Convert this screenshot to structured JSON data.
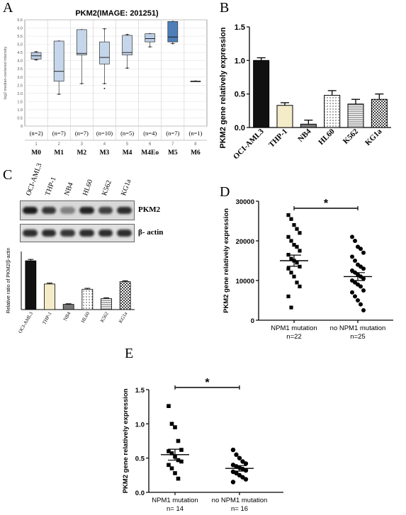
{
  "letters": {
    "a": "A",
    "b": "B",
    "c": "C",
    "d": "D",
    "e": "E"
  },
  "chart_data": [
    {
      "panel": "A",
      "type": "box",
      "title": "PKM2(IMAGE: 201251)",
      "ylabel": "log2 median-centered intensity",
      "ylim": [
        0,
        6.5
      ],
      "yticks": [
        "0",
        "0.5",
        "1.0",
        "1.5",
        "2.0",
        "2.5",
        "3.0",
        "3.5",
        "4.0",
        "4.5",
        "5.0",
        "5.5",
        "6.0",
        "6.5"
      ],
      "index_labels": [
        "1",
        "2",
        "3",
        "4",
        "5",
        "6",
        "7",
        "8"
      ],
      "categories": [
        "M0",
        "M1",
        "M2",
        "M3",
        "M4",
        "M4Eo",
        "M5",
        "M6"
      ],
      "n_labels": [
        "(n=2)",
        "(n=7)",
        "(n=7)",
        "(n=10)",
        "(n=5)",
        "(n=4)",
        "(n=7)",
        "(n=1)"
      ],
      "boxes": [
        {
          "min": 4.05,
          "q1": 4.1,
          "med": 4.3,
          "q3": 4.5,
          "max": 4.55,
          "color": "#b9cde4"
        },
        {
          "min": 1.95,
          "q1": 2.75,
          "med": 3.35,
          "q3": 5.2,
          "max": 5.2,
          "color": "#c6d6ea"
        },
        {
          "min": 2.6,
          "q1": 4.35,
          "med": 4.45,
          "q3": 5.9,
          "max": 5.9,
          "color": "#c6d6ea"
        },
        {
          "min": 2.6,
          "q1": 3.8,
          "med": 4.2,
          "q3": 5.15,
          "max": 5.95,
          "color": "#c6d6ea",
          "outliers": [
            2.3
          ]
        },
        {
          "min": 3.55,
          "q1": 4.35,
          "med": 4.5,
          "q3": 5.55,
          "max": 5.6,
          "color": "#c6d6ea"
        },
        {
          "min": 4.85,
          "q1": 5.15,
          "med": 5.35,
          "q3": 5.65,
          "max": 5.65,
          "color": "#b9cde4"
        },
        {
          "min": 5.05,
          "q1": 5.15,
          "med": 5.45,
          "q3": 6.4,
          "max": 6.4,
          "color": "#4e7fb8"
        },
        {
          "min": 2.75,
          "q1": 2.75,
          "med": 2.75,
          "q3": 2.75,
          "max": 2.75,
          "color": "#c6d6ea"
        }
      ]
    },
    {
      "panel": "B",
      "type": "bar",
      "ylabel": "PKM2 gene relatively expression",
      "ylim": [
        0,
        1.5
      ],
      "yticks": [
        "0.0",
        "0.5",
        "1.0",
        "1.5"
      ],
      "categories": [
        "OCI-AML3",
        "THP-1",
        "NB4",
        "HL60",
        "K562",
        "KG1a"
      ],
      "values": [
        1.0,
        0.33,
        0.05,
        0.48,
        0.35,
        0.42
      ],
      "errors": [
        0.04,
        0.04,
        0.06,
        0.07,
        0.07,
        0.08
      ],
      "fills": [
        "black",
        "cream",
        "gray",
        "dots",
        "hlines",
        "checker"
      ]
    },
    {
      "panel": "C",
      "type": "bar",
      "ylabel": "Relative ratio of PKM2/β-actin",
      "categories": [
        "OCI-AML3",
        "THP-1",
        "NB4",
        "HL60",
        "K562",
        "KG1a"
      ],
      "values": [
        4.2,
        2.2,
        0.45,
        1.75,
        0.95,
        2.4
      ],
      "errors": [
        0.12,
        0.08,
        0.05,
        0.08,
        0.06,
        0.08
      ],
      "fills": [
        "black",
        "cream",
        "gray",
        "dots",
        "hlines",
        "checker"
      ],
      "blot_lanes": [
        "OCI-AML3",
        "THP-1",
        "NB4",
        "HL60",
        "K562",
        "KG1a"
      ],
      "blot_labels": [
        "PKM2",
        "β- actin"
      ],
      "pkm2_band_intensity": [
        1.0,
        0.85,
        0.45,
        0.95,
        0.8,
        0.9
      ],
      "actin_band_intensity": [
        0.9,
        0.9,
        0.85,
        0.9,
        0.9,
        0.9
      ]
    },
    {
      "panel": "D",
      "type": "scatter",
      "ylabel": "PKM2 gene relatively expression",
      "ylim": [
        0,
        30000
      ],
      "yticks": [
        "0",
        "10000",
        "20000",
        "30000"
      ],
      "groups": [
        {
          "label": "NPM1 mutation",
          "n": "n=22",
          "mean": 15000,
          "sem": 1400,
          "values": [
            26500,
            25500,
            24000,
            23000,
            22000,
            21000,
            20000,
            19000,
            18500,
            17500,
            16500,
            15500,
            15000,
            14500,
            13500,
            13000,
            12000,
            11000,
            9500,
            8500,
            6000,
            3200
          ]
        },
        {
          "label": "no NPM1 mutation",
          "n": "n=25",
          "mean": 11000,
          "sem": 1000,
          "values": [
            21000,
            20000,
            18500,
            18000,
            17000,
            16000,
            15000,
            14000,
            13500,
            13000,
            12500,
            12000,
            11500,
            11000,
            10500,
            10000,
            9500,
            9000,
            8500,
            7500,
            7000,
            6000,
            5000,
            4000,
            2500
          ]
        }
      ],
      "significance": "*"
    },
    {
      "panel": "E",
      "type": "scatter",
      "ylabel": "PKM2 gene relatively expression",
      "ylim": [
        0,
        1.5
      ],
      "yticks": [
        "0.0",
        "0.5",
        "1.0",
        "1.5"
      ],
      "groups": [
        {
          "label": "NPM1 mutation",
          "n": "n= 14",
          "mean": 0.55,
          "sem": 0.08,
          "values": [
            1.26,
            1.0,
            0.95,
            0.75,
            0.62,
            0.6,
            0.57,
            0.52,
            0.47,
            0.45,
            0.4,
            0.35,
            0.28,
            0.2
          ]
        },
        {
          "label": "no NPM1 mutation",
          "n": "n= 16",
          "mean": 0.35,
          "sem": 0.04,
          "values": [
            0.62,
            0.55,
            0.5,
            0.45,
            0.42,
            0.4,
            0.38,
            0.36,
            0.34,
            0.32,
            0.3,
            0.28,
            0.25,
            0.22,
            0.19,
            0.15
          ]
        }
      ],
      "significance": "*"
    }
  ]
}
